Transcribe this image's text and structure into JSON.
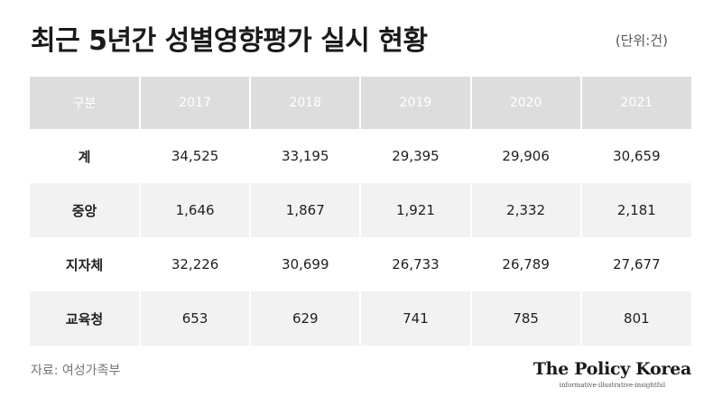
{
  "title": "최근 5년간 성별영향평가 실시 현황",
  "unit": "(단위:건)",
  "table": {
    "header": [
      "구분",
      "2017",
      "2018",
      "2019",
      "2020",
      "2021"
    ],
    "rows": [
      [
        "계",
        "34,525",
        "33,195",
        "29,395",
        "29,906",
        "30,659"
      ],
      [
        "중앙",
        "1,646",
        "1,867",
        "1,921",
        "2,332",
        "2,181"
      ],
      [
        "지자체",
        "32,226",
        "30,699",
        "26,733",
        "26,789",
        "27,677"
      ],
      [
        "교육청",
        "653",
        "629",
        "741",
        "785",
        "801"
      ]
    ]
  },
  "source": "자료: 여성가족부",
  "brand": {
    "name": "The Policy Korea",
    "tagline": "informative·illustrative·insightful"
  },
  "colors": {
    "header_bg": "#dddddd",
    "stripe_bg": "#f2f2f2",
    "text": "#1f1f1f"
  }
}
